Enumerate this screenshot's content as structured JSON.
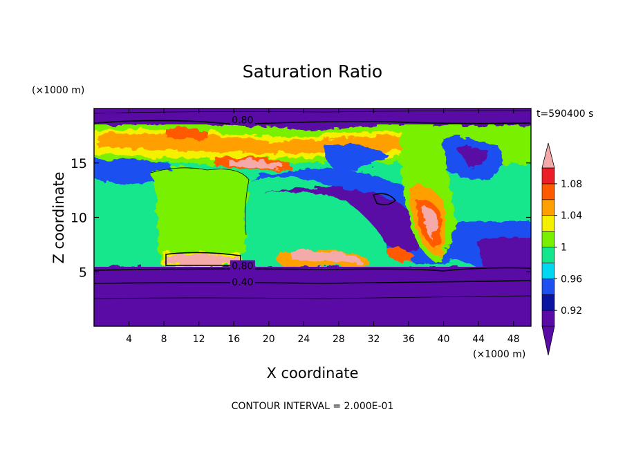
{
  "chart_data": {
    "type": "heatmap",
    "title": "Saturation Ratio",
    "xlabel": "X coordinate",
    "ylabel": "Z coordinate",
    "x_unit": "(×1000 m)",
    "y_unit": "(×1000 m)",
    "time_label": "t=590400 s",
    "footer": "CONTOUR INTERVAL = 2.000E-01",
    "xlim": [
      0,
      50
    ],
    "ylim": [
      0,
      20
    ],
    "x_ticks": [
      4,
      8,
      12,
      16,
      20,
      24,
      28,
      32,
      36,
      40,
      44,
      48
    ],
    "y_ticks": [
      5,
      10,
      15
    ],
    "contour_labels": [
      {
        "text": "0.80",
        "x": 17.0,
        "y": 18.7
      },
      {
        "text": "0.80",
        "x": 17.0,
        "y": 5.3
      },
      {
        "text": "0.40",
        "x": 17.0,
        "y": 3.8
      }
    ],
    "colorbar": {
      "levels": [
        0.9,
        0.92,
        0.94,
        0.96,
        0.98,
        1.0,
        1.02,
        1.04,
        1.06,
        1.08,
        1.1
      ],
      "tick_labels": [
        "0.92",
        "0.96",
        "1",
        "1.04",
        "1.08"
      ],
      "colors": [
        "#5a0aa5",
        "#0a14a0",
        "#1e50f0",
        "#00d7f0",
        "#14e68c",
        "#78f000",
        "#f5f000",
        "#ffa000",
        "#ff5a00",
        "#eb1e28"
      ],
      "under_color": "#5a0aa5",
      "over_color": "#f5aaaa"
    },
    "regions": [
      {
        "desc": "upper dry layer",
        "x": [
          0,
          50
        ],
        "y": [
          18.3,
          20
        ],
        "value": "<0.90"
      },
      {
        "desc": "lower dry layer",
        "x": [
          0,
          50
        ],
        "y": [
          0,
          5.4
        ],
        "value": "<0.90"
      },
      {
        "desc": "saturated cloud block",
        "x": [
          6,
          18
        ],
        "y": [
          5.8,
          13.8
        ],
        "value": "1.00-1.02"
      },
      {
        "desc": "supersaturated patch",
        "x": [
          8,
          17
        ],
        "y": [
          5.8,
          6.8
        ],
        "value": ">1.10"
      },
      {
        "desc": "upper moist band",
        "x": [
          0,
          36
        ],
        "y": [
          14,
          18.3
        ],
        "value": "1.00-1.10"
      },
      {
        "desc": "convective region",
        "x": [
          34,
          44
        ],
        "y": [
          6,
          18
        ],
        "value": "0.96-1.10"
      }
    ]
  }
}
